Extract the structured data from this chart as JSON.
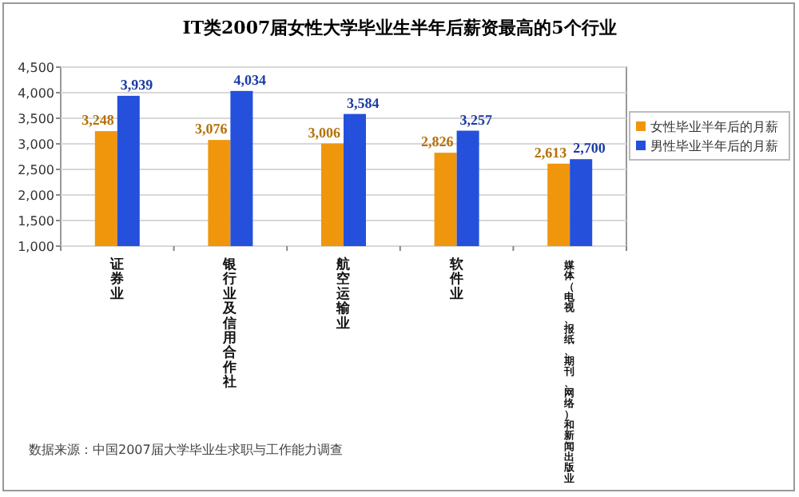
{
  "chart_data": {
    "type": "bar",
    "title": "IT类2007届女性大学毕业生半年后薪资最高的5个行业",
    "categories": [
      "证券业",
      "银行业及信用合作社",
      "航空运输业",
      "软件业",
      "媒体（电视、报纸、期刊、网络）和新闻出版业"
    ],
    "series": [
      {
        "name": "女性毕业半年后的月薪",
        "color": "#f0960c",
        "values": [
          3248,
          3076,
          3006,
          2826,
          2613
        ],
        "value_labels": [
          "3,248",
          "3,076",
          "3,006",
          "2,826",
          "2,613"
        ]
      },
      {
        "name": "男性毕业半年后的月薪",
        "color": "#2450dc",
        "values": [
          3939,
          4034,
          3584,
          3257,
          2700
        ],
        "value_labels": [
          "3,939",
          "4,034",
          "3,584",
          "3,257",
          "2,700"
        ]
      }
    ],
    "ylim": [
      1000,
      4500
    ],
    "yticks": [
      {
        "value": 1000,
        "label": "1,000"
      },
      {
        "value": 1500,
        "label": "1,500"
      },
      {
        "value": 2000,
        "label": "2,000"
      },
      {
        "value": 2500,
        "label": "2,500"
      },
      {
        "value": 3000,
        "label": "3,000"
      },
      {
        "value": 3500,
        "label": "3,500"
      },
      {
        "value": 4000,
        "label": "4,000"
      },
      {
        "value": 4500,
        "label": "4,500"
      }
    ],
    "grid": "y",
    "legend": "right",
    "annotations": [
      "数据来源：中国2007届大学毕业生求职与工作能力调查"
    ]
  }
}
